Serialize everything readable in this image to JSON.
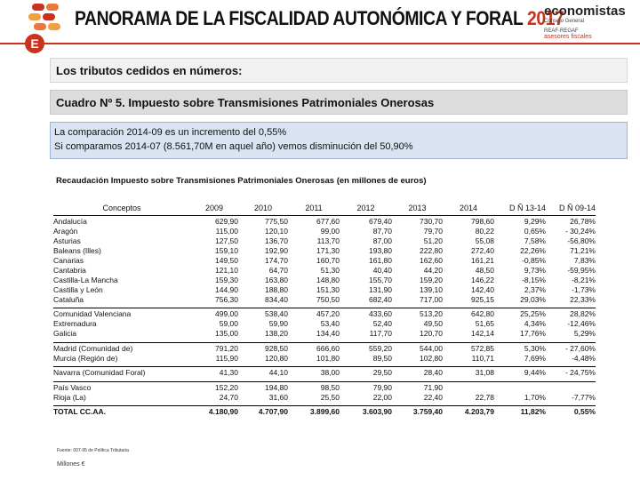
{
  "header": {
    "title": "PANORAMA DE LA FISCALIDAD AUTONÓMICA Y FORAL",
    "year": "2017",
    "brand_name": "economistas",
    "brand_sub": "Consejo General",
    "brand_line2": "REAF-REGAF",
    "brand_line3": "asesores fiscales",
    "badge_letter": "E",
    "accent_color": "#c8321e"
  },
  "section_title": "Los tributos cedidos en números:",
  "table_caption": "Cuadro Nº 5. Impuesto sobre Transmisiones Patrimoniales Onerosas",
  "notes": {
    "line1": "La comparación 2014-09 es un incremento del 0,55%",
    "line2": "Si comparamos 2014-07 (8.561,70M en aquel año) vemos disminución del 50,90%"
  },
  "table_title": "Recaudación Impuesto sobre Transmisiones Patrimoniales Onerosas (en millones de euros)",
  "columns": [
    "Conceptos",
    "2009",
    "2010",
    "2011",
    "2012",
    "2013",
    "2014",
    "D Ñ 13-14",
    "D Ñ 09-14"
  ],
  "rows": [
    [
      "Andalucía",
      "629,90",
      "775,50",
      "677,60",
      "679,40",
      "730,70",
      "798,60",
      "9,29%",
      "26,78%"
    ],
    [
      "Aragón",
      "115,00",
      "120,10",
      "99,00",
      "87,70",
      "79,70",
      "80,22",
      "0,65%",
      "- 30,24%"
    ],
    [
      "Asturias",
      "127,50",
      "136,70",
      "113,70",
      "87,00",
      "51,20",
      "55,08",
      "7,58%",
      "-56,80%"
    ],
    [
      "Baleans (Illes)",
      "159,10",
      "192,90",
      "171,30",
      "193,80",
      "222,80",
      "272,40",
      "22,26%",
      "71,21%"
    ],
    [
      "Canarias",
      "149,50",
      "174,70",
      "160,70",
      "161,80",
      "162,60",
      "161,21",
      "-0,85%",
      "7,83%"
    ],
    [
      "Cantabria",
      "121,10",
      "64,70",
      "51,30",
      "40,40",
      "44,20",
      "48,50",
      "9,73%",
      "-59,95%"
    ],
    [
      "Castilla-La Mancha",
      "159,30",
      "163,80",
      "148,80",
      "155,70",
      "159,20",
      "146,22",
      "-8,15%",
      "-8,21%"
    ],
    [
      "Castilla y León",
      "144,90",
      "188,80",
      "151,30",
      "131,90",
      "139,10",
      "142,40",
      "2,37%",
      "-1,73%"
    ],
    [
      "Cataluña",
      "756,30",
      "834,40",
      "750,50",
      "682,40",
      "717,00",
      "925,15",
      "29,03%",
      "22,33%"
    ],
    [
      "Comunidad Valenciana",
      "499,00",
      "538,40",
      "457,20",
      "433,60",
      "513,20",
      "642,80",
      "25,25%",
      "28,82%"
    ],
    [
      "Extremadura",
      "59,00",
      "59,90",
      "53,40",
      "52,40",
      "49,50",
      "51,65",
      "4,34%",
      "-12,46%"
    ],
    [
      "Galicia",
      "135,00",
      "138,20",
      "134,40",
      "117,70",
      "120,70",
      "142,14",
      "17,76%",
      "5,29%"
    ],
    [
      "Madrid (Comunidad de)",
      "791,20",
      "928,50",
      "666,60",
      "559,20",
      "544,00",
      "572,85",
      "5,30%",
      "- 27,60%"
    ],
    [
      "Murcia (Región de)",
      "115,90",
      "120,80",
      "101,80",
      "89,50",
      "102,80",
      "110,71",
      "7,69%",
      "-4,48%"
    ],
    [
      "Navarra (Comunidad Foral)",
      "41,30",
      "44,10",
      "38,00",
      "29,50",
      "28,40",
      "31,08",
      "9,44%",
      "- 24,75%"
    ],
    [
      "País Vasco",
      "152,20",
      "194,80",
      "98,50",
      "79,90",
      "71,90",
      "",
      "",
      ""
    ],
    [
      "Rioja (La)",
      "24,70",
      "31,60",
      "25,50",
      "22,00",
      "22,40",
      "22,78",
      "1,70%",
      "-7,77%"
    ],
    [
      "TOTAL CC.AA.",
      "4.180,90",
      "4.707,90",
      "3.899,60",
      "3.603,90",
      "3.759,40",
      "4.203,79",
      "11,82%",
      "0,55%"
    ]
  ],
  "footer": {
    "source": "Fuente: 007-95 de Política Tributaria",
    "unit": "Millones €"
  }
}
